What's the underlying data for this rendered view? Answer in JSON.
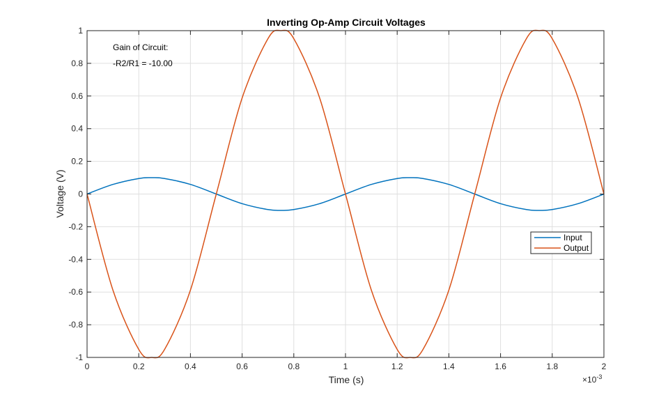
{
  "chart_data": {
    "type": "line",
    "title": "Inverting Op-Amp Circuit Voltages",
    "xlabel": "Time (s)",
    "ylabel": "Voltage (V)",
    "x_exponent_label": "×10",
    "x_exponent_power": "-3",
    "xlim": [
      0,
      0.002
    ],
    "ylim": [
      -1,
      1
    ],
    "x_tick_values": [
      0,
      0.0002,
      0.0004,
      0.0006,
      0.0008,
      0.001,
      0.0012,
      0.0014,
      0.0016,
      0.0018,
      0.002
    ],
    "x_tick_labels": [
      "0",
      "0.2",
      "0.4",
      "0.6",
      "0.8",
      "1",
      "1.2",
      "1.4",
      "1.6",
      "1.8",
      "2"
    ],
    "y_tick_values": [
      1,
      0.8,
      0.6,
      0.4,
      0.2,
      0,
      -0.2,
      -0.4,
      -0.6,
      -0.8,
      -1
    ],
    "y_tick_labels": [
      "1",
      "0.8",
      "0.6",
      "0.4",
      "0.2",
      "0",
      "-0.2",
      "-0.4",
      "-0.6",
      "-0.8",
      "-1"
    ],
    "grid": true,
    "legend_placement": "right",
    "x": [
      0,
      0.0001,
      0.0002,
      0.00025,
      0.0003,
      0.0004,
      0.0005,
      0.0006,
      0.0007,
      0.00075,
      0.0008,
      0.0009,
      0.001,
      0.0011,
      0.0012,
      0.00125,
      0.0013,
      0.0014,
      0.0015,
      0.0016,
      0.0017,
      0.00175,
      0.0018,
      0.0019,
      0.002
    ],
    "series": [
      {
        "name": "Input",
        "color": "#0072BD",
        "values": [
          0,
          0.0588,
          0.0951,
          0.1,
          0.0951,
          0.0588,
          0,
          -0.0588,
          -0.0951,
          -0.1,
          -0.0951,
          -0.0588,
          0,
          0.0588,
          0.0951,
          0.1,
          0.0951,
          0.0588,
          0,
          -0.0588,
          -0.0951,
          -0.1,
          -0.0951,
          -0.0588,
          0
        ]
      },
      {
        "name": "Output",
        "color": "#D95319",
        "values": [
          0,
          -0.5878,
          -0.9511,
          -1,
          -0.9511,
          -0.5878,
          0,
          0.5878,
          0.9511,
          1,
          0.9511,
          0.5878,
          0,
          -0.5878,
          -0.9511,
          -1,
          -0.9511,
          -0.5878,
          0,
          0.5878,
          0.9511,
          1,
          0.9511,
          0.5878,
          0
        ]
      }
    ],
    "annotations": [
      "Gain of Circuit:",
      "-R2/R1 = -10.00"
    ]
  }
}
